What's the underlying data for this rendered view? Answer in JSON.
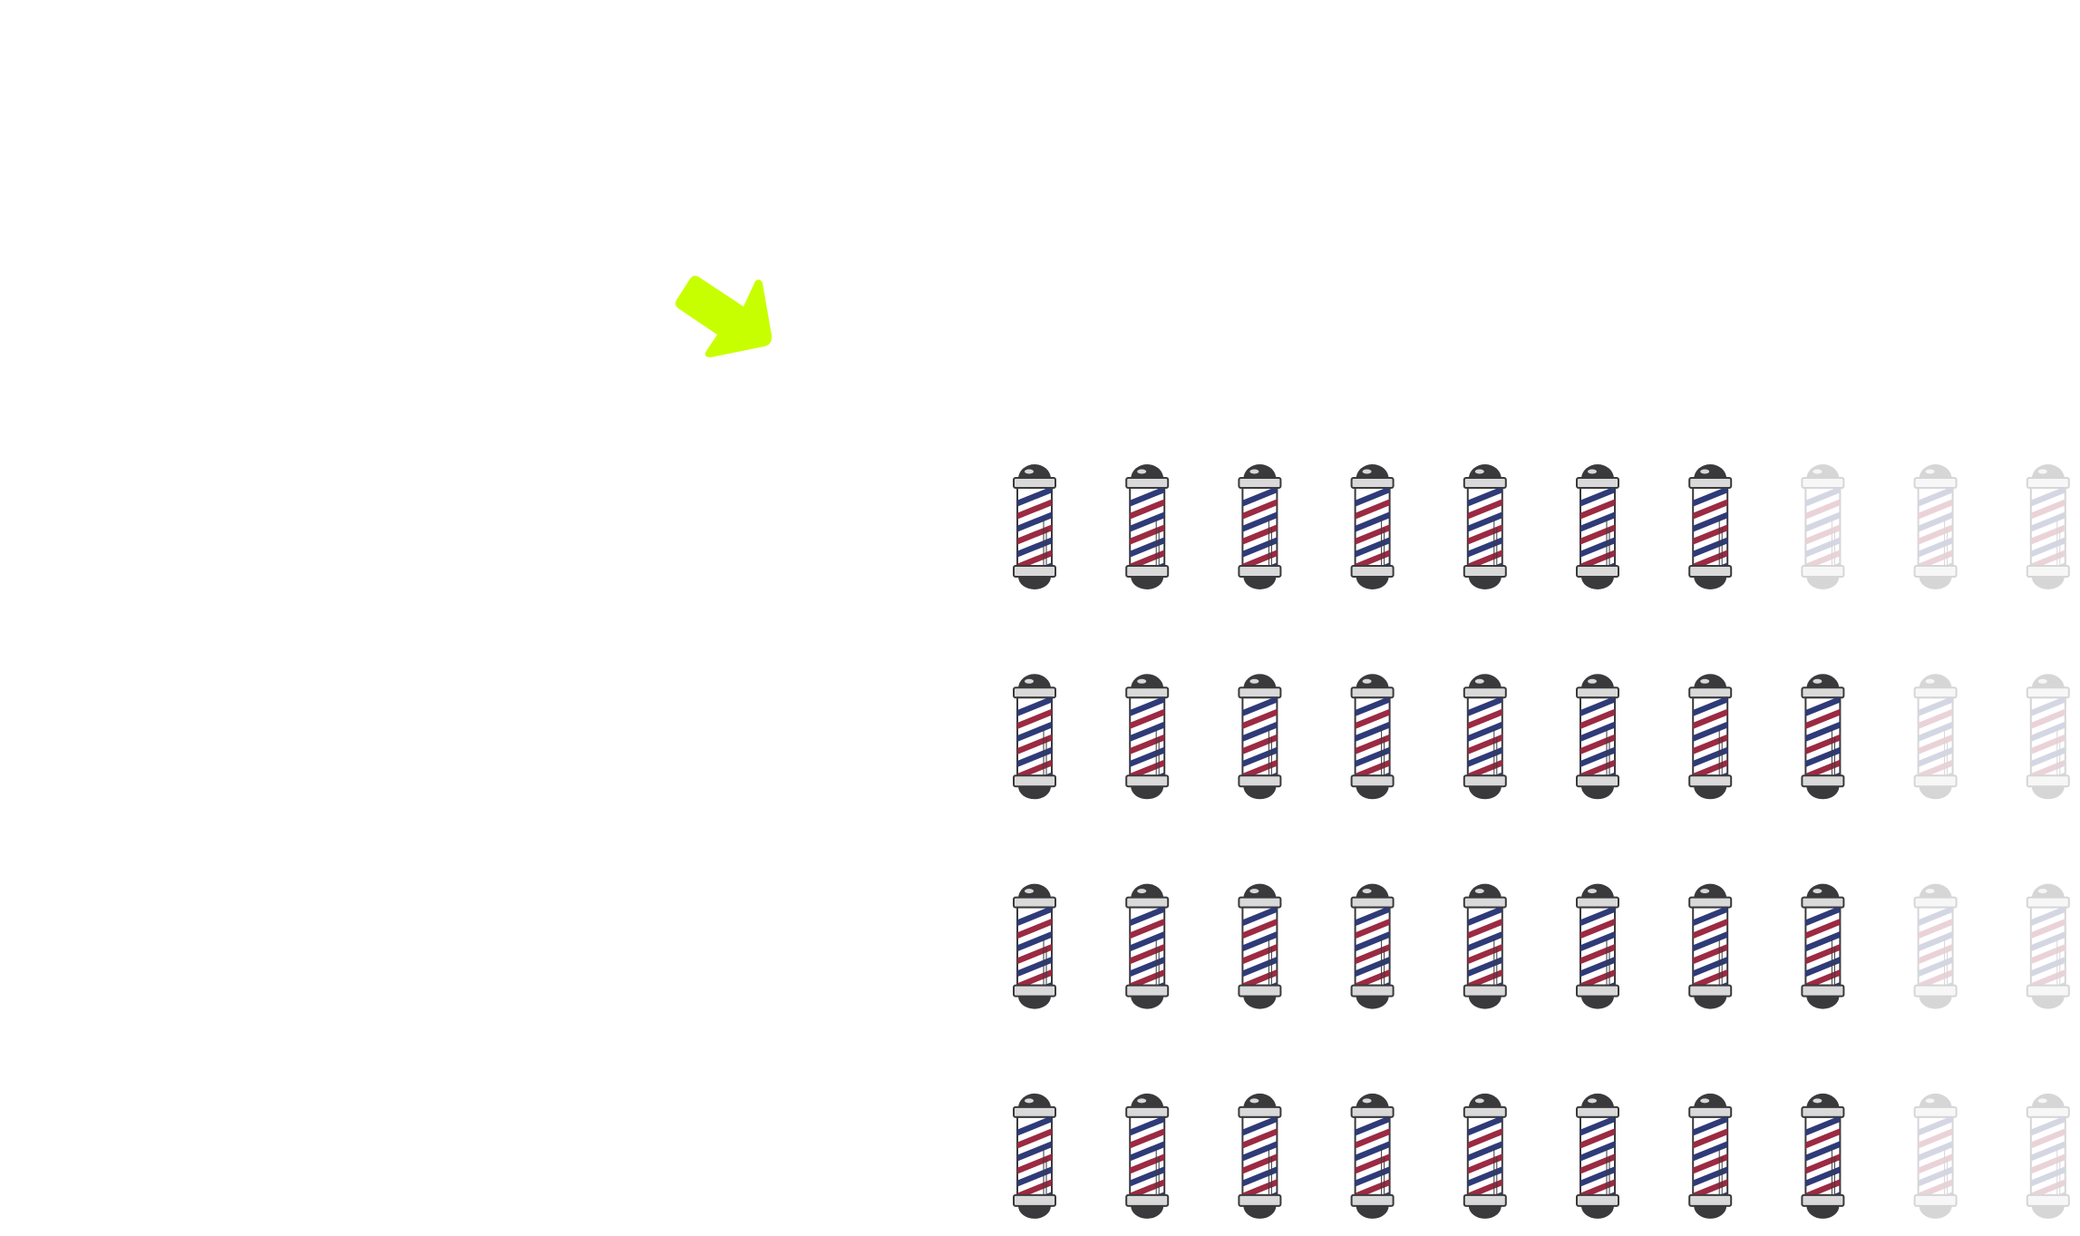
{
  "chart_data": {
    "type": "pictograph",
    "icon": "barber-pole-icon",
    "icons_per_row": 10,
    "rows": [
      {
        "value": 7
      },
      {
        "value": 8
      },
      {
        "value": 8
      },
      {
        "value": 8
      }
    ],
    "colors": {
      "stripe_blue": "#2f3b78",
      "stripe_red": "#9b2a42",
      "metal_dark": "#3a3a3c",
      "metal_light": "#d9d9d9",
      "inactive_opacity": 0.2,
      "arrow": "#c8ff00"
    },
    "annotation": {
      "icon": "arrow-down-right-icon"
    }
  }
}
